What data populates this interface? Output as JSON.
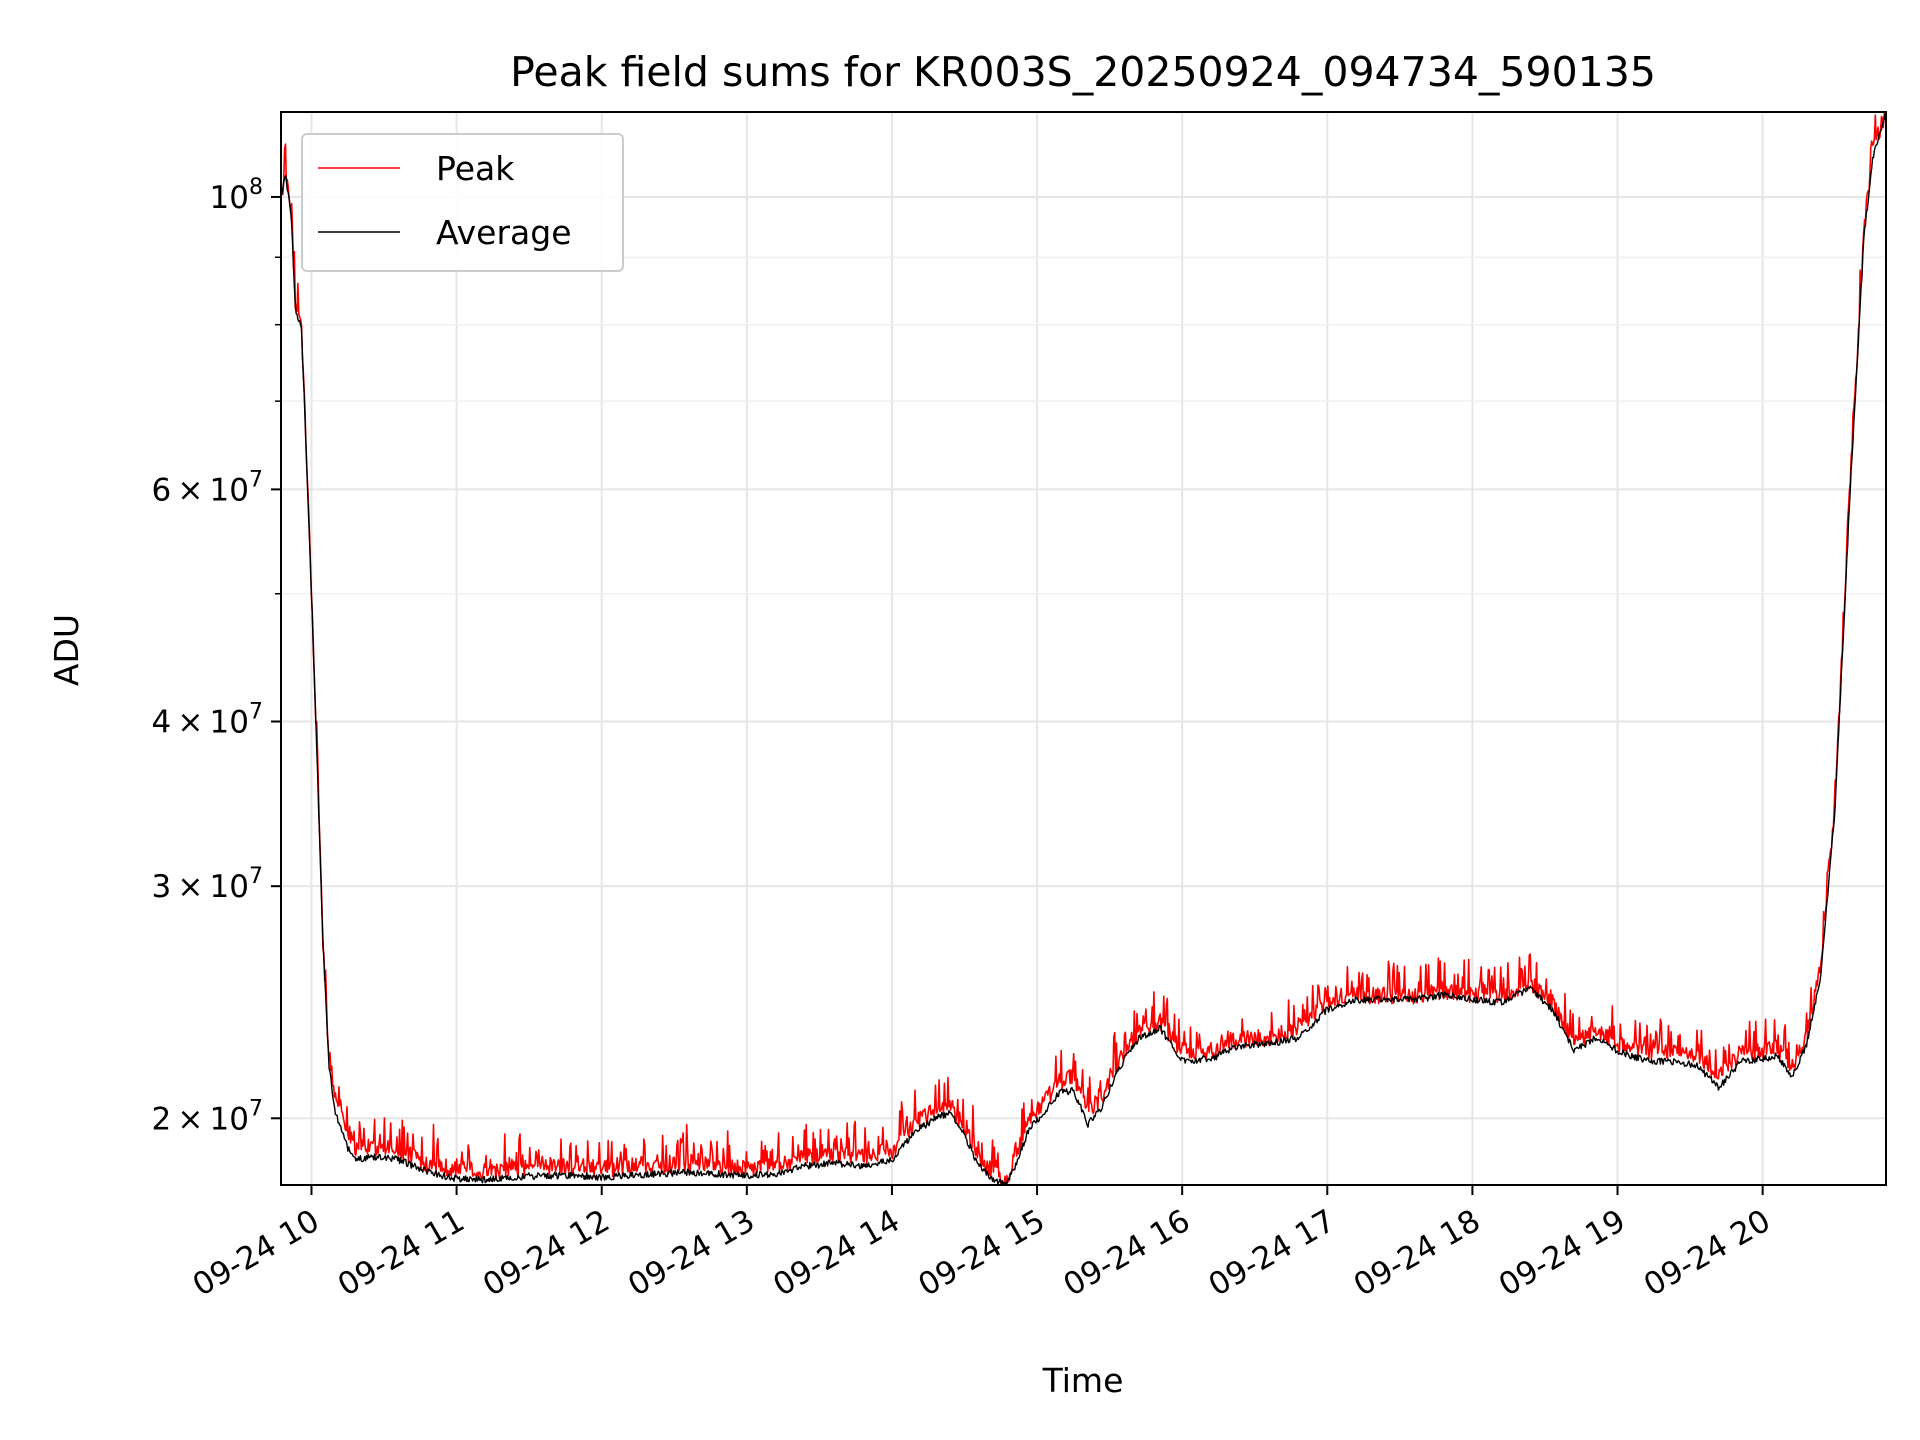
{
  "chart_data": {
    "type": "line",
    "title": "Peak field sums for KR003S_20250924_094734_590135",
    "xlabel": "Time",
    "ylabel": "ADU",
    "yscale": "log",
    "xlim": [
      9.79,
      20.85
    ],
    "ylim": [
      17800000,
      116000000
    ],
    "grid": true,
    "legend_position": "top-left",
    "x_ticks": [
      {
        "value": 10,
        "label": "09-24 10"
      },
      {
        "value": 11,
        "label": "09-24 11"
      },
      {
        "value": 12,
        "label": "09-24 12"
      },
      {
        "value": 13,
        "label": "09-24 13"
      },
      {
        "value": 14,
        "label": "09-24 14"
      },
      {
        "value": 15,
        "label": "09-24 15"
      },
      {
        "value": 16,
        "label": "09-24 16"
      },
      {
        "value": 17,
        "label": "09-24 17"
      },
      {
        "value": 18,
        "label": "09-24 18"
      },
      {
        "value": 19,
        "label": "09-24 19"
      },
      {
        "value": 20,
        "label": "09-24 20"
      }
    ],
    "y_major_ticks": [
      {
        "value": 20000000,
        "mantissa": "2",
        "base": "10",
        "exp": "7"
      },
      {
        "value": 30000000,
        "mantissa": "3",
        "base": "10",
        "exp": "7"
      },
      {
        "value": 40000000,
        "mantissa": "4",
        "base": "10",
        "exp": "7"
      },
      {
        "value": 60000000,
        "mantissa": "6",
        "base": "10",
        "exp": "7"
      },
      {
        "value": 100000000,
        "mantissa": "",
        "base": "10",
        "exp": "8"
      }
    ],
    "y_times_sign": "×",
    "y_minor_ticks": [
      50000000,
      70000000,
      80000000,
      90000000
    ],
    "series": [
      {
        "name": "Peak",
        "color": "#ff0000",
        "noise": "spiky",
        "points": [
          [
            9.79,
            100000000
          ],
          [
            9.82,
            104000000
          ],
          [
            9.86,
            97000000
          ],
          [
            9.89,
            82000000
          ],
          [
            9.93,
            80000000
          ],
          [
            9.96,
            66000000
          ],
          [
            10.0,
            50000000
          ],
          [
            10.04,
            37000000
          ],
          [
            10.08,
            27000000
          ],
          [
            10.12,
            22500000
          ],
          [
            10.16,
            20800000
          ],
          [
            10.2,
            20300000
          ],
          [
            10.25,
            19600000
          ],
          [
            10.3,
            19000000
          ],
          [
            10.4,
            19000000
          ],
          [
            10.5,
            19000000
          ],
          [
            10.6,
            18900000
          ],
          [
            10.7,
            18700000
          ],
          [
            10.8,
            18500000
          ],
          [
            10.9,
            18400000
          ],
          [
            11.0,
            18300000
          ],
          [
            11.2,
            18200000
          ],
          [
            11.4,
            18300000
          ],
          [
            11.6,
            18400000
          ],
          [
            11.8,
            18400000
          ],
          [
            12.0,
            18300000
          ],
          [
            12.2,
            18400000
          ],
          [
            12.4,
            18400000
          ],
          [
            12.6,
            18500000
          ],
          [
            12.8,
            18400000
          ],
          [
            13.0,
            18300000
          ],
          [
            13.2,
            18400000
          ],
          [
            13.4,
            18700000
          ],
          [
            13.6,
            18800000
          ],
          [
            13.8,
            18700000
          ],
          [
            14.0,
            18900000
          ],
          [
            14.15,
            19800000
          ],
          [
            14.3,
            20300000
          ],
          [
            14.4,
            20500000
          ],
          [
            14.5,
            19700000
          ],
          [
            14.6,
            18700000
          ],
          [
            14.7,
            18200000
          ],
          [
            14.78,
            17900000
          ],
          [
            14.85,
            18700000
          ],
          [
            14.95,
            20000000
          ],
          [
            15.05,
            20600000
          ],
          [
            15.15,
            21300000
          ],
          [
            15.25,
            21500000
          ],
          [
            15.35,
            20200000
          ],
          [
            15.45,
            20800000
          ],
          [
            15.55,
            22000000
          ],
          [
            15.7,
            23200000
          ],
          [
            15.85,
            23600000
          ],
          [
            16.0,
            22500000
          ],
          [
            16.2,
            22500000
          ],
          [
            16.4,
            23000000
          ],
          [
            16.6,
            23000000
          ],
          [
            16.8,
            23500000
          ],
          [
            17.0,
            24500000
          ],
          [
            17.2,
            24800000
          ],
          [
            17.4,
            24800000
          ],
          [
            17.6,
            24800000
          ],
          [
            17.8,
            25000000
          ],
          [
            18.0,
            24800000
          ],
          [
            18.2,
            24800000
          ],
          [
            18.4,
            25300000
          ],
          [
            18.55,
            24500000
          ],
          [
            18.7,
            22800000
          ],
          [
            18.85,
            23300000
          ],
          [
            19.0,
            22800000
          ],
          [
            19.2,
            22500000
          ],
          [
            19.4,
            22500000
          ],
          [
            19.55,
            22300000
          ],
          [
            19.7,
            21500000
          ],
          [
            19.85,
            22400000
          ],
          [
            20.0,
            22500000
          ],
          [
            20.1,
            22700000
          ],
          [
            20.2,
            21800000
          ],
          [
            20.3,
            23000000
          ],
          [
            20.4,
            26000000
          ],
          [
            20.5,
            35000000
          ],
          [
            20.6,
            60000000
          ],
          [
            20.7,
            95000000
          ],
          [
            20.76,
            108000000
          ],
          [
            20.8,
            112000000
          ],
          [
            20.85,
            116000000
          ]
        ]
      },
      {
        "name": "Average",
        "color": "#000000",
        "noise": "smooth",
        "points": [
          [
            9.79,
            100000000
          ],
          [
            9.82,
            104000000
          ],
          [
            9.86,
            97000000
          ],
          [
            9.89,
            82000000
          ],
          [
            9.93,
            80000000
          ],
          [
            9.96,
            66000000
          ],
          [
            10.0,
            50000000
          ],
          [
            10.04,
            37000000
          ],
          [
            10.08,
            27000000
          ],
          [
            10.12,
            22000000
          ],
          [
            10.16,
            20300000
          ],
          [
            10.2,
            19700000
          ],
          [
            10.25,
            19000000
          ],
          [
            10.3,
            18600000
          ],
          [
            10.4,
            18700000
          ],
          [
            10.5,
            18700000
          ],
          [
            10.6,
            18600000
          ],
          [
            10.7,
            18400000
          ],
          [
            10.8,
            18200000
          ],
          [
            10.9,
            18100000
          ],
          [
            11.0,
            18000000
          ],
          [
            11.2,
            17950000
          ],
          [
            11.4,
            18050000
          ],
          [
            11.6,
            18100000
          ],
          [
            11.8,
            18100000
          ],
          [
            12.0,
            18050000
          ],
          [
            12.2,
            18100000
          ],
          [
            12.4,
            18150000
          ],
          [
            12.6,
            18200000
          ],
          [
            12.8,
            18150000
          ],
          [
            13.0,
            18100000
          ],
          [
            13.2,
            18150000
          ],
          [
            13.4,
            18400000
          ],
          [
            13.6,
            18500000
          ],
          [
            13.8,
            18400000
          ],
          [
            14.0,
            18600000
          ],
          [
            14.15,
            19500000
          ],
          [
            14.3,
            20000000
          ],
          [
            14.4,
            20200000
          ],
          [
            14.5,
            19400000
          ],
          [
            14.6,
            18400000
          ],
          [
            14.7,
            17950000
          ],
          [
            14.78,
            17800000
          ],
          [
            14.85,
            18400000
          ],
          [
            14.95,
            19700000
          ],
          [
            15.05,
            20200000
          ],
          [
            15.15,
            20900000
          ],
          [
            15.25,
            21000000
          ],
          [
            15.35,
            19800000
          ],
          [
            15.45,
            20400000
          ],
          [
            15.55,
            21700000
          ],
          [
            15.7,
            23000000
          ],
          [
            15.85,
            23400000
          ],
          [
            16.0,
            22100000
          ],
          [
            16.2,
            22200000
          ],
          [
            16.4,
            22700000
          ],
          [
            16.6,
            22800000
          ],
          [
            16.8,
            23000000
          ],
          [
            17.0,
            24200000
          ],
          [
            17.2,
            24600000
          ],
          [
            17.4,
            24600000
          ],
          [
            17.6,
            24600000
          ],
          [
            17.8,
            24800000
          ],
          [
            18.0,
            24600000
          ],
          [
            18.2,
            24500000
          ],
          [
            18.4,
            25100000
          ],
          [
            18.55,
            24200000
          ],
          [
            18.7,
            22500000
          ],
          [
            18.85,
            23000000
          ],
          [
            19.0,
            22500000
          ],
          [
            19.2,
            22100000
          ],
          [
            19.4,
            22100000
          ],
          [
            19.55,
            21900000
          ],
          [
            19.7,
            21100000
          ],
          [
            19.85,
            22100000
          ],
          [
            20.0,
            22200000
          ],
          [
            20.1,
            22300000
          ],
          [
            20.2,
            21500000
          ],
          [
            20.3,
            22700000
          ],
          [
            20.4,
            25600000
          ],
          [
            20.5,
            34500000
          ],
          [
            20.6,
            59000000
          ],
          [
            20.7,
            94000000
          ],
          [
            20.76,
            107000000
          ],
          [
            20.8,
            111000000
          ],
          [
            20.85,
            116000000
          ]
        ]
      }
    ]
  }
}
